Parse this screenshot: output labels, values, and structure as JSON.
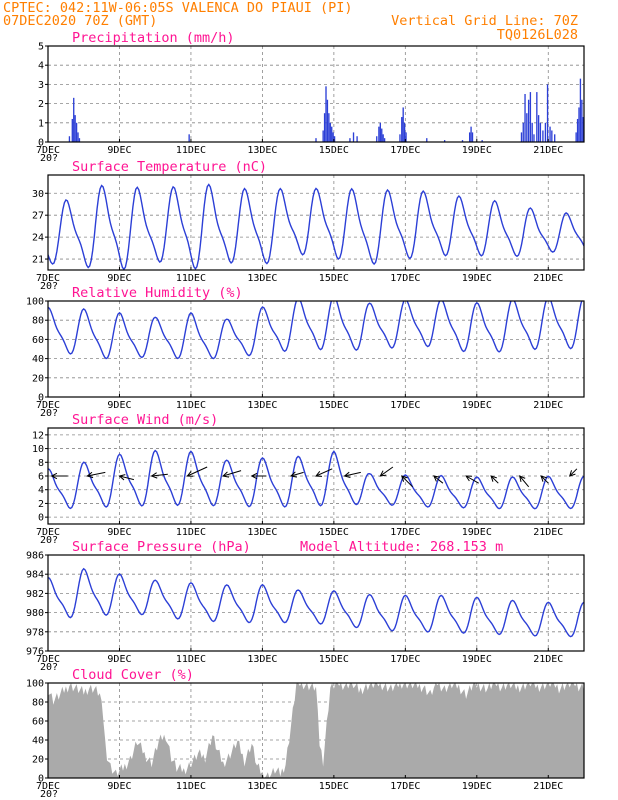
{
  "header": {
    "line1": "CPTEC:   042:11W-06:05S   VALENCA DO PIAUI (PI)",
    "line2_left": "07DEC2020 70Z (GMT)",
    "line2_right": "Vertical Grid Line: 70Z",
    "line3_right": "TQ0126L028"
  },
  "colors": {
    "header": "#ff7f00",
    "panel_title": "#ff1493",
    "series": "#2c3fd6",
    "cloud": "#aaaaaa",
    "arrows": "#000000"
  },
  "x_axis": {
    "start": "07DEC2020",
    "end": "22DEC2020",
    "unit": "days",
    "tick_labels": [
      "7DEC",
      "9DEC",
      "11DEC",
      "13DEC",
      "15DEC",
      "17DEC",
      "19DEC",
      "21DEC"
    ],
    "tick_days": [
      0,
      2,
      4,
      6,
      8,
      10,
      12,
      14
    ],
    "minor_tick_label": "20?"
  },
  "chart_data": [
    {
      "type": "bar",
      "title": "Precipitation (mm/h)",
      "ylim": [
        0,
        5
      ],
      "yticks": [
        0,
        1,
        2,
        3,
        4,
        5
      ],
      "series": [
        {
          "values": [
            [
              0.6,
              0.3
            ],
            [
              0.68,
              1.2
            ],
            [
              0.72,
              2.3
            ],
            [
              0.76,
              1.4
            ],
            [
              0.8,
              1.0
            ],
            [
              0.84,
              0.5
            ],
            [
              0.88,
              0.2
            ],
            [
              3.95,
              0.4
            ],
            [
              7.5,
              0.2
            ],
            [
              7.7,
              0.6
            ],
            [
              7.74,
              1.5
            ],
            [
              7.78,
              2.9
            ],
            [
              7.82,
              2.2
            ],
            [
              7.86,
              1.5
            ],
            [
              7.9,
              1.0
            ],
            [
              7.94,
              0.8
            ],
            [
              7.98,
              0.5
            ],
            [
              8.02,
              0.3
            ],
            [
              8.45,
              0.2
            ],
            [
              8.55,
              0.5
            ],
            [
              8.65,
              0.3
            ],
            [
              9.2,
              0.3
            ],
            [
              9.26,
              0.8
            ],
            [
              9.3,
              1.0
            ],
            [
              9.34,
              0.7
            ],
            [
              9.38,
              0.4
            ],
            [
              9.42,
              0.2
            ],
            [
              9.85,
              0.4
            ],
            [
              9.9,
              1.3
            ],
            [
              9.94,
              1.8
            ],
            [
              9.98,
              1.0
            ],
            [
              10.02,
              0.5
            ],
            [
              10.6,
              0.2
            ],
            [
              11.1,
              0.1
            ],
            [
              11.6,
              0.1
            ],
            [
              12.15,
              0.1
            ],
            [
              11.8,
              0.5
            ],
            [
              11.84,
              0.8
            ],
            [
              11.88,
              0.5
            ],
            [
              13.25,
              0.5
            ],
            [
              13.3,
              1.0
            ],
            [
              13.35,
              2.5
            ],
            [
              13.4,
              1.5
            ],
            [
              13.45,
              2.2
            ],
            [
              13.5,
              2.6
            ],
            [
              13.55,
              1.0
            ],
            [
              13.6,
              0.4
            ],
            [
              13.68,
              2.6
            ],
            [
              13.73,
              1.4
            ],
            [
              13.78,
              1.0
            ],
            [
              13.85,
              0.6
            ],
            [
              13.92,
              1.0
            ],
            [
              13.98,
              3.0
            ],
            [
              14.05,
              0.8
            ],
            [
              14.1,
              0.6
            ],
            [
              14.18,
              0.4
            ],
            [
              14.78,
              0.5
            ],
            [
              14.82,
              1.2
            ],
            [
              14.86,
              1.8
            ],
            [
              14.9,
              3.3
            ],
            [
              14.94,
              2.2
            ],
            [
              14.98,
              1.3
            ],
            [
              15.02,
              0.5
            ]
          ]
        }
      ]
    },
    {
      "type": "line",
      "title": "Surface Temperature (nC)",
      "ylim": [
        19.5,
        32.5
      ],
      "yticks": [
        21,
        24,
        27,
        30
      ],
      "series": [
        {
          "amplitude": [
            3.4,
            4.6,
            5.6,
            4.0,
            5.6,
            4.4,
            4.8,
            3.9,
            4.4,
            4.5,
            4.3,
            3.8,
            3.5,
            3.3,
            2.4,
            2.2
          ],
          "mean": [
            24.0,
            24.8,
            25.4,
            25.0,
            25.5,
            25.2,
            25.3,
            25.8,
            25.8,
            25.0,
            25.6,
            25.5,
            25.2,
            24.8,
            24.5,
            24.5
          ]
        }
      ]
    },
    {
      "type": "line",
      "title": "Relative Humidity (%)",
      "ylim": [
        0,
        100
      ],
      "yticks": [
        0,
        20,
        40,
        60,
        80,
        100
      ],
      "series": [
        {
          "amplitude": [
            20,
            22,
            22,
            18,
            22,
            18,
            22,
            24,
            25,
            22,
            22,
            22,
            24,
            24,
            24,
            24
          ],
          "mean": [
            70,
            66,
            62,
            62,
            62,
            60,
            68,
            75,
            76,
            72,
            76,
            76,
            70,
            74,
            76,
            76
          ]
        }
      ]
    },
    {
      "type": "line",
      "title": "Surface Wind (m/s)",
      "ylim": [
        -1,
        13
      ],
      "yticks": [
        0,
        2,
        4,
        6,
        8,
        10,
        12
      ],
      "series": [
        {
          "amplitude": [
            2.6,
            3.0,
            3.4,
            3.6,
            3.5,
            3.0,
            3.2,
            3.3,
            3.5,
            2.0,
            2.0,
            2.1,
            2.0,
            2.1,
            2.1,
            2.0
          ],
          "mean": [
            4.0,
            4.5,
            5.2,
            5.5,
            5.5,
            4.8,
            4.9,
            5.0,
            5.5,
            4.0,
            3.8,
            3.6,
            3.5,
            3.4,
            3.5,
            3.4
          ]
        }
      ],
      "wind_arrows": [
        [
          0.1,
          0.45,
          0.0
        ],
        [
          1.1,
          0.5,
          0.1
        ],
        [
          2.0,
          0.4,
          -0.1
        ],
        [
          2.9,
          0.45,
          0.05
        ],
        [
          3.9,
          0.55,
          0.25
        ],
        [
          4.9,
          0.5,
          0.15
        ],
        [
          5.7,
          0.4,
          0.0
        ],
        [
          6.8,
          0.35,
          0.1
        ],
        [
          7.5,
          0.45,
          0.2
        ],
        [
          8.3,
          0.45,
          0.1
        ],
        [
          9.3,
          0.35,
          0.25
        ],
        [
          9.9,
          0.3,
          -0.3
        ],
        [
          10.8,
          0.25,
          -0.2
        ],
        [
          11.7,
          0.35,
          -0.2
        ],
        [
          12.4,
          0.2,
          -0.2
        ],
        [
          13.2,
          0.25,
          -0.3
        ],
        [
          13.8,
          0.2,
          -0.2
        ],
        [
          14.6,
          0.2,
          0.2
        ]
      ]
    },
    {
      "type": "line",
      "title": "Surface Pressure (hPa)",
      "subtitle": "Model Altitude: 268.153 m",
      "ylim": [
        976,
        986
      ],
      "yticks": [
        976,
        978,
        980,
        982,
        984,
        986
      ],
      "series": [
        {
          "amplitude": [
            2.0,
            2.2,
            1.9,
            1.6,
            1.8,
            1.7,
            1.8,
            1.5,
            1.6,
            1.6,
            1.7,
            1.7,
            1.7,
            1.6,
            1.6,
            1.6
          ],
          "mean": [
            981.3,
            982.0,
            981.8,
            981.5,
            981.0,
            980.9,
            980.8,
            980.6,
            980.4,
            980.0,
            979.8,
            979.8,
            979.6,
            979.4,
            979.2,
            979.2
          ]
        }
      ]
    },
    {
      "type": "area",
      "title": "Cloud Cover (%)",
      "ylim": [
        0,
        100
      ],
      "yticks": [
        0,
        20,
        40,
        60,
        80,
        100
      ],
      "series": [
        {
          "values": [
            [
              0.0,
              93
            ],
            [
              0.15,
              82
            ],
            [
              0.3,
              86
            ],
            [
              0.45,
              92
            ],
            [
              0.6,
              98
            ],
            [
              0.8,
              94
            ],
            [
              1.0,
              90
            ],
            [
              1.15,
              95
            ],
            [
              1.3,
              94
            ],
            [
              1.45,
              88
            ],
            [
              1.55,
              62
            ],
            [
              1.62,
              28
            ],
            [
              1.75,
              12
            ],
            [
              1.9,
              4
            ],
            [
              2.1,
              10
            ],
            [
              2.3,
              20
            ],
            [
              2.5,
              38
            ],
            [
              2.7,
              25
            ],
            [
              2.9,
              16
            ],
            [
              3.1,
              38
            ],
            [
              3.3,
              45
            ],
            [
              3.45,
              22
            ],
            [
              3.6,
              10
            ],
            [
              3.8,
              8
            ],
            [
              4.0,
              15
            ],
            [
              4.2,
              25
            ],
            [
              4.4,
              22
            ],
            [
              4.6,
              45
            ],
            [
              4.75,
              28
            ],
            [
              4.9,
              15
            ],
            [
              5.1,
              25
            ],
            [
              5.3,
              38
            ],
            [
              5.5,
              18
            ],
            [
              5.7,
              36
            ],
            [
              5.85,
              12
            ],
            [
              6.0,
              4
            ],
            [
              6.2,
              2
            ],
            [
              6.35,
              8
            ],
            [
              6.5,
              4
            ],
            [
              6.65,
              15
            ],
            [
              6.8,
              55
            ],
            [
              6.95,
              98
            ],
            [
              7.1,
              100
            ],
            [
              7.3,
              97
            ],
            [
              7.5,
              95
            ],
            [
              7.6,
              36
            ],
            [
              7.7,
              18
            ],
            [
              7.9,
              95
            ],
            [
              8.1,
              100
            ],
            [
              8.3,
              98
            ],
            [
              8.5,
              100
            ],
            [
              8.7,
              92
            ],
            [
              9.0,
              98
            ],
            [
              9.3,
              99
            ],
            [
              9.6,
              94
            ],
            [
              9.9,
              100
            ],
            [
              10.2,
              98
            ],
            [
              10.5,
              96
            ],
            [
              10.7,
              88
            ],
            [
              10.9,
              100
            ],
            [
              11.1,
              94
            ],
            [
              11.3,
              98
            ],
            [
              11.5,
              96
            ],
            [
              11.7,
              88
            ],
            [
              11.9,
              98
            ],
            [
              12.1,
              97
            ],
            [
              12.3,
              94
            ],
            [
              12.5,
              100
            ],
            [
              12.7,
              96
            ],
            [
              12.9,
              99
            ],
            [
              13.1,
              95
            ],
            [
              13.3,
              97
            ],
            [
              13.5,
              100
            ],
            [
              13.7,
              96
            ],
            [
              13.9,
              98
            ],
            [
              14.1,
              100
            ],
            [
              14.3,
              95
            ],
            [
              14.5,
              98
            ],
            [
              14.7,
              100
            ],
            [
              14.85,
              97
            ],
            [
              15.0,
              96
            ]
          ]
        }
      ]
    }
  ]
}
